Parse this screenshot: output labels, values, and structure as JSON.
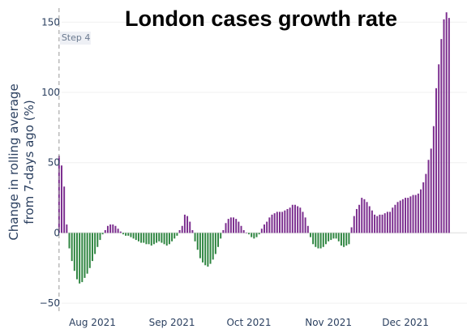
{
  "chart_data": {
    "type": "bar",
    "title": "London cases growth rate",
    "ylabel_lines": [
      "Change in rolling average",
      "from 7-days ago (%)"
    ],
    "ylim": [
      -58,
      160
    ],
    "yticks": [
      -50,
      0,
      50,
      100,
      150
    ],
    "ytick_labels": [
      "−50",
      "0",
      "50",
      "100",
      "150"
    ],
    "xticks": [
      {
        "date": "2021-08-01",
        "label": "Aug 2021"
      },
      {
        "date": "2021-09-01",
        "label": "Sep 2021"
      },
      {
        "date": "2021-10-01",
        "label": "Oct 2021"
      },
      {
        "date": "2021-11-01",
        "label": "Nov 2021"
      },
      {
        "date": "2021-12-01",
        "label": "Dec 2021"
      }
    ],
    "x_range": [
      "2021-07-20",
      "2021-12-25"
    ],
    "grid": true,
    "annotation": {
      "label": "Step 4",
      "date": "2021-07-19"
    },
    "colors": {
      "positive": "#7b2d8e",
      "negative": "#2e8540",
      "axis_text": "#2a3f5f",
      "annotation_line": "#999999",
      "annotation_bg": "#eef0f5"
    },
    "first_date": "2021-07-19",
    "values": [
      55,
      48,
      33,
      6,
      -11,
      -20,
      -27,
      -33,
      -36,
      -35,
      -32,
      -29,
      -25,
      -20,
      -15,
      -10,
      -5,
      -1,
      2,
      5,
      6,
      6,
      5,
      3,
      1,
      -1,
      -2,
      -2,
      -3,
      -4,
      -5,
      -6,
      -7,
      -7,
      -8,
      -8,
      -9,
      -8,
      -7,
      -6,
      -7,
      -8,
      -9,
      -8,
      -6,
      -4,
      -2,
      2,
      5,
      13,
      12,
      8,
      2,
      -6,
      -12,
      -18,
      -21,
      -23,
      -24,
      -22,
      -19,
      -15,
      -10,
      -4,
      2,
      7,
      10,
      11,
      11,
      10,
      8,
      5,
      2,
      0,
      -1,
      -3,
      -4,
      -3,
      -1,
      3,
      6,
      8,
      11,
      13,
      14,
      15,
      15,
      15,
      16,
      17,
      18,
      20,
      20,
      19,
      18,
      15,
      11,
      5,
      -3,
      -8,
      -10,
      -11,
      -11,
      -10,
      -8,
      -6,
      -5,
      -4,
      -4,
      -6,
      -9,
      -10,
      -9,
      -8,
      4,
      12,
      17,
      20,
      25,
      24,
      22,
      19,
      16,
      13,
      12,
      13,
      13,
      14,
      15,
      15,
      18,
      20,
      22,
      23,
      24,
      25,
      25,
      26,
      27,
      27,
      28,
      31,
      36,
      42,
      52,
      60,
      76,
      103,
      120,
      138,
      152,
      157,
      153
    ]
  }
}
